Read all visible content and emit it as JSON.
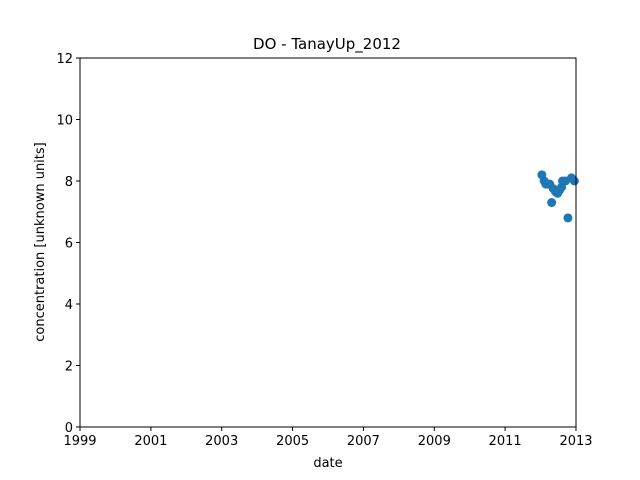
{
  "chart_data": {
    "type": "scatter",
    "title": "DO - TanayUp_2012",
    "xlabel": "date",
    "ylabel": "concentration [unknown units]",
    "x_axis": "date",
    "xlim": [
      "1999-01-01",
      "2013-01-01"
    ],
    "ylim": [
      0,
      12
    ],
    "xticks": [
      "1999",
      "2001",
      "2003",
      "2005",
      "2007",
      "2009",
      "2011",
      "2013"
    ],
    "yticks": [
      "0",
      "2",
      "4",
      "6",
      "8",
      "10",
      "12"
    ],
    "grid": false,
    "marker_color": "#1f77b4",
    "series": [
      {
        "x": [
          "2012-01-15",
          "2012-02-08",
          "2012-02-25",
          "2012-03-15",
          "2012-04-05",
          "2012-04-25",
          "2012-05-12",
          "2012-06-05",
          "2012-06-25",
          "2012-07-15",
          "2012-08-05",
          "2012-08-15",
          "2012-09-15",
          "2012-10-10",
          "2012-11-15",
          "2012-12-15"
        ],
        "y": [
          8.2,
          8.0,
          7.9,
          7.9,
          7.9,
          7.3,
          7.75,
          7.65,
          7.6,
          7.7,
          7.8,
          8.0,
          8.0,
          6.8,
          8.1,
          8.0
        ]
      }
    ]
  }
}
